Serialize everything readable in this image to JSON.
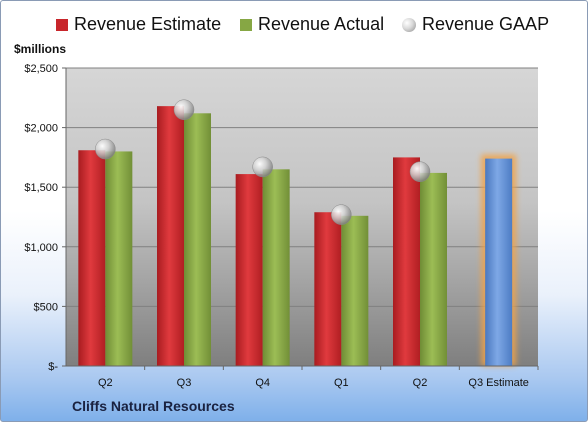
{
  "legend": {
    "estimate": "Revenue Estimate",
    "actual": "Revenue Actual",
    "gaap": "Revenue GAAP"
  },
  "unit_label": "$millions",
  "company": "Cliffs Natural Resources",
  "colors": {
    "estimate": "#c8262b",
    "actual": "#86a744",
    "gaap": "#b8b8b8",
    "forecast": "#5b8dd6",
    "forecast_glow": "#f0a34a"
  },
  "chart_data": {
    "type": "bar",
    "categories": [
      "Q2",
      "Q3",
      "Q4",
      "Q1",
      "Q2",
      "Q3 Estimate"
    ],
    "series": [
      {
        "name": "Revenue Estimate",
        "values": [
          1810,
          2180,
          1610,
          1290,
          1750,
          1740
        ]
      },
      {
        "name": "Revenue Actual",
        "values": [
          1800,
          2120,
          1650,
          1260,
          1620,
          null
        ]
      },
      {
        "name": "Revenue GAAP",
        "values": [
          1820,
          2150,
          1670,
          1270,
          1630,
          null
        ]
      }
    ],
    "ylabel": "$millions",
    "ylim": [
      0,
      2500
    ],
    "yticks": [
      0,
      500,
      1000,
      1500,
      2000,
      2500
    ],
    "ytick_labels": [
      "$-",
      "$500",
      "$1,000",
      "$1,500",
      "$2,000",
      "$2,500"
    ],
    "legend_position": "top",
    "grid": true
  }
}
